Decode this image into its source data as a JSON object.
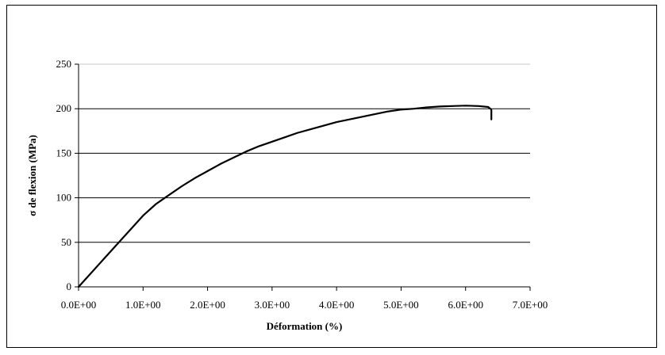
{
  "chart_data": {
    "type": "line",
    "title": "",
    "xlabel": "Déformation (%)",
    "ylabel": "σ de flexion (MPa)",
    "xlim": [
      0,
      7
    ],
    "ylim": [
      0,
      250
    ],
    "x_ticks": [
      0,
      1,
      2,
      3,
      4,
      5,
      6,
      7
    ],
    "x_tick_labels": [
      "0.0E+00",
      "1.0E+00",
      "2.0E+00",
      "3.0E+00",
      "4.0E+00",
      "5.0E+00",
      "6.0E+00",
      "7.0E+00"
    ],
    "y_ticks": [
      0,
      50,
      100,
      150,
      200,
      250
    ],
    "y_tick_labels": [
      "0",
      "50",
      "100",
      "150",
      "200",
      "250"
    ],
    "grid": "horizontal",
    "legend": "none",
    "series": [
      {
        "color": "#000000",
        "x": [
          0,
          0.2,
          0.4,
          0.6,
          0.8,
          1.0,
          1.2,
          1.4,
          1.6,
          1.8,
          2.0,
          2.2,
          2.4,
          2.6,
          2.8,
          3.0,
          3.2,
          3.4,
          3.6,
          3.8,
          4.0,
          4.2,
          4.4,
          4.6,
          4.8,
          5.0,
          5.2,
          5.4,
          5.6,
          5.8,
          6.0,
          6.2,
          6.35,
          6.4,
          6.4
        ],
        "y": [
          0,
          16,
          32,
          48,
          64,
          80,
          93,
          103,
          113,
          122,
          130,
          138,
          145,
          152,
          158,
          163,
          168,
          173,
          177,
          181,
          185,
          188,
          191,
          194,
          197,
          199,
          200,
          201.5,
          202.5,
          203,
          203.5,
          203,
          202,
          199,
          188
        ]
      }
    ]
  }
}
